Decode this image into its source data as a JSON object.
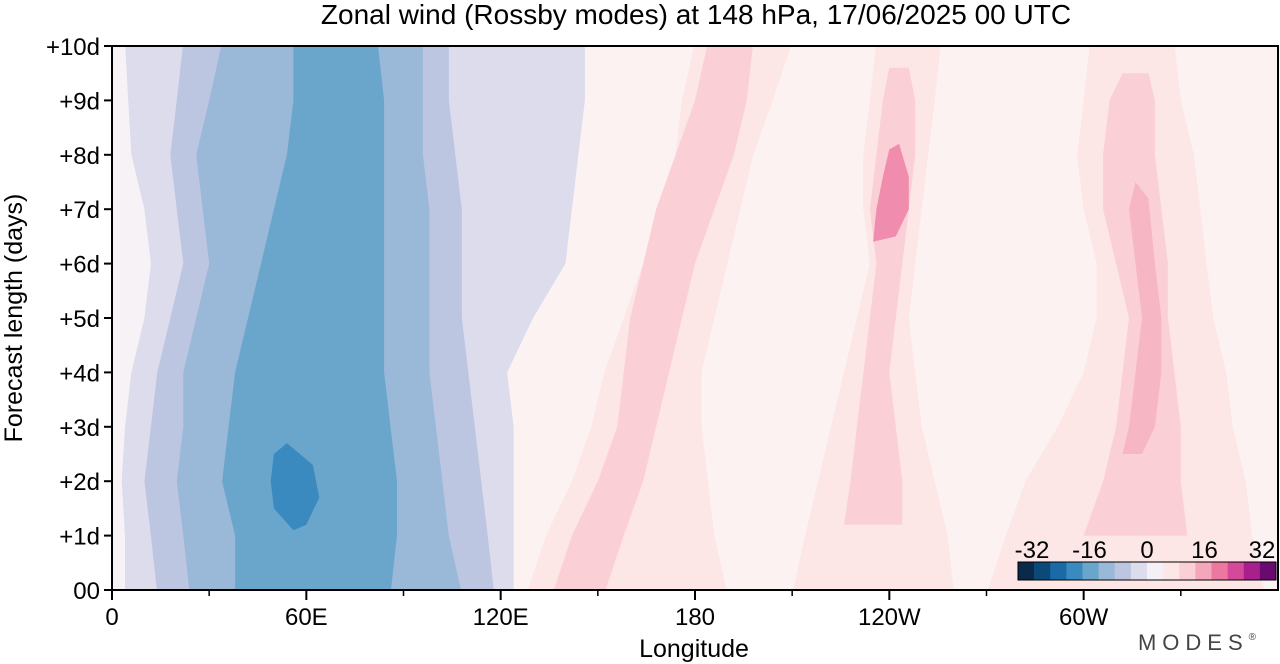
{
  "chart_data": {
    "type": "heatmap",
    "title": "Zonal wind (Rossby modes) at 148 hPa,  17/06/2025  00 UTC",
    "xlabel": "Longitude",
    "ylabel": "Forecast length (days)",
    "x_ticks": [
      {
        "lon": 0,
        "label": "0"
      },
      {
        "lon": 60,
        "label": "60E"
      },
      {
        "lon": 120,
        "label": "120E"
      },
      {
        "lon": 180,
        "label": "180"
      },
      {
        "lon": 240,
        "label": "120W"
      },
      {
        "lon": 300,
        "label": "60W"
      }
    ],
    "x_minor_ticks": [
      30,
      90,
      150,
      210,
      270,
      330
    ],
    "xlim": [
      0,
      360
    ],
    "y_ticks": [
      {
        "day": 0,
        "label": "00"
      },
      {
        "day": 1,
        "label": "+1d"
      },
      {
        "day": 2,
        "label": "+2d"
      },
      {
        "day": 3,
        "label": "+3d"
      },
      {
        "day": 4,
        "label": "+4d"
      },
      {
        "day": 5,
        "label": "+5d"
      },
      {
        "day": 6,
        "label": "+6d"
      },
      {
        "day": 7,
        "label": "+7d"
      },
      {
        "day": 8,
        "label": "+8d"
      },
      {
        "day": 9,
        "label": "+9d"
      },
      {
        "day": 10,
        "label": "+10d"
      }
    ],
    "ylim": [
      0,
      10
    ],
    "colorbar": {
      "labels": [
        "-32",
        "-16",
        "0",
        "16",
        "32"
      ],
      "range": [
        -32,
        32
      ],
      "placement": "bottom-right",
      "colors": [
        "#0a2a4a",
        "#0a4a7a",
        "#1a6aa8",
        "#3a8ac0",
        "#6aa6cc",
        "#9ab8d8",
        "#bcc6e0",
        "#dcdcec",
        "#f4f0f6",
        "#fce6e6",
        "#fad0d6",
        "#f4a6ba",
        "#ec78a0",
        "#d44a98",
        "#a8208c",
        "#6a0a70"
      ]
    },
    "bands": [
      {
        "name": "-10",
        "left": [
          [
            0,
            38
          ],
          [
            1,
            38
          ],
          [
            2,
            34
          ],
          [
            3,
            36
          ],
          [
            4,
            38
          ],
          [
            5,
            42
          ],
          [
            6,
            46
          ],
          [
            7,
            50
          ],
          [
            8,
            54
          ],
          [
            9,
            56
          ],
          [
            10,
            56
          ]
        ],
        "right": [
          [
            0,
            86
          ],
          [
            1,
            88
          ],
          [
            2,
            88
          ],
          [
            3,
            86
          ],
          [
            4,
            84
          ],
          [
            5,
            84
          ],
          [
            6,
            84
          ],
          [
            7,
            84
          ],
          [
            8,
            84
          ],
          [
            9,
            84
          ],
          [
            10,
            82
          ]
        ]
      },
      {
        "name": "-12",
        "left": [
          [
            1.1,
            56
          ],
          [
            1.5,
            50
          ],
          [
            2.0,
            49
          ],
          [
            2.5,
            50
          ],
          [
            2.7,
            54
          ],
          [
            2.3,
            62
          ],
          [
            1.7,
            64
          ],
          [
            1.2,
            60
          ]
        ],
        "right": []
      },
      {
        "name": "-8",
        "left": [
          [
            0,
            24
          ],
          [
            1,
            22
          ],
          [
            2,
            20
          ],
          [
            3,
            22
          ],
          [
            4,
            22
          ],
          [
            5,
            26
          ],
          [
            6,
            30
          ],
          [
            7,
            28
          ],
          [
            8,
            26
          ],
          [
            9,
            30
          ],
          [
            10,
            34
          ]
        ],
        "right": [
          [
            0,
            108
          ],
          [
            1,
            104
          ],
          [
            2,
            102
          ],
          [
            3,
            100
          ],
          [
            4,
            98
          ],
          [
            5,
            98
          ],
          [
            6,
            98
          ],
          [
            7,
            98
          ],
          [
            8,
            96
          ],
          [
            9,
            96
          ],
          [
            10,
            96
          ]
        ]
      },
      {
        "name": "-6",
        "left": [
          [
            0,
            14
          ],
          [
            1,
            12
          ],
          [
            2,
            10
          ],
          [
            3,
            12
          ],
          [
            4,
            14
          ],
          [
            5,
            18
          ],
          [
            6,
            22
          ],
          [
            7,
            20
          ],
          [
            8,
            18
          ],
          [
            9,
            20
          ],
          [
            10,
            22
          ]
        ],
        "right": [
          [
            0,
            118
          ],
          [
            1,
            116
          ],
          [
            2,
            114
          ],
          [
            3,
            112
          ],
          [
            4,
            110
          ],
          [
            5,
            108
          ],
          [
            6,
            108
          ],
          [
            7,
            108
          ],
          [
            8,
            106
          ],
          [
            9,
            104
          ],
          [
            10,
            104
          ]
        ]
      },
      {
        "name": "-4",
        "left": [
          [
            0,
            4
          ],
          [
            1,
            4
          ],
          [
            2,
            3
          ],
          [
            3,
            4
          ],
          [
            4,
            6
          ],
          [
            5,
            10
          ],
          [
            6,
            12
          ],
          [
            7,
            10
          ],
          [
            8,
            6
          ],
          [
            9,
            5
          ],
          [
            10,
            4
          ]
        ],
        "right": [
          [
            0,
            124
          ],
          [
            1,
            124
          ],
          [
            2,
            124
          ],
          [
            3,
            124
          ],
          [
            4,
            122
          ],
          [
            5,
            130
          ],
          [
            6,
            140
          ],
          [
            7,
            142
          ],
          [
            8,
            144
          ],
          [
            9,
            146
          ],
          [
            10,
            146
          ]
        ]
      },
      {
        "name": "+2 A",
        "left": [
          [
            0,
            128
          ],
          [
            1,
            134
          ],
          [
            2,
            142
          ],
          [
            3,
            148
          ],
          [
            4,
            152
          ],
          [
            5,
            158
          ],
          [
            6,
            164
          ],
          [
            7,
            170
          ],
          [
            8,
            174
          ],
          [
            9,
            176
          ],
          [
            10,
            180
          ]
        ],
        "right": [
          [
            0,
            190
          ],
          [
            1,
            186
          ],
          [
            2,
            184
          ],
          [
            3,
            182
          ],
          [
            4,
            182
          ],
          [
            5,
            186
          ],
          [
            6,
            190
          ],
          [
            7,
            194
          ],
          [
            8,
            198
          ],
          [
            9,
            204
          ],
          [
            10,
            210
          ]
        ]
      },
      {
        "name": "+4 A",
        "left": [
          [
            0,
            136
          ],
          [
            1,
            142
          ],
          [
            2,
            150
          ],
          [
            3,
            156
          ],
          [
            4,
            158
          ],
          [
            5,
            160
          ],
          [
            6,
            164
          ],
          [
            7,
            168
          ],
          [
            8,
            174
          ],
          [
            9,
            180
          ],
          [
            10,
            184
          ]
        ],
        "right": [
          [
            0,
            152
          ],
          [
            1,
            158
          ],
          [
            2,
            164
          ],
          [
            3,
            168
          ],
          [
            4,
            172
          ],
          [
            5,
            176
          ],
          [
            6,
            180
          ],
          [
            7,
            186
          ],
          [
            8,
            192
          ],
          [
            9,
            196
          ],
          [
            10,
            198
          ]
        ]
      },
      {
        "name": "+2 B",
        "left": [
          [
            0,
            210
          ],
          [
            1,
            214
          ],
          [
            2,
            218
          ],
          [
            3,
            222
          ],
          [
            4,
            226
          ],
          [
            5,
            230
          ],
          [
            6,
            234
          ],
          [
            7,
            232
          ],
          [
            8,
            232
          ],
          [
            9,
            234
          ],
          [
            10,
            236
          ]
        ],
        "right": [
          [
            0,
            260
          ],
          [
            1,
            258
          ],
          [
            2,
            254
          ],
          [
            3,
            250
          ],
          [
            4,
            248
          ],
          [
            5,
            246
          ],
          [
            6,
            248
          ],
          [
            7,
            250
          ],
          [
            8,
            252
          ],
          [
            9,
            254
          ],
          [
            10,
            256
          ]
        ]
      },
      {
        "name": "+4 B",
        "left": [
          [
            1.2,
            226
          ],
          [
            2,
            228
          ],
          [
            3,
            230
          ],
          [
            4,
            232
          ],
          [
            5,
            234
          ],
          [
            6,
            236
          ],
          [
            7,
            234
          ],
          [
            8,
            236
          ],
          [
            9,
            238
          ],
          [
            9.6,
            240
          ]
        ],
        "right": [
          [
            1.2,
            244
          ],
          [
            2,
            244
          ],
          [
            3,
            242
          ],
          [
            4,
            240
          ],
          [
            5,
            242
          ],
          [
            6,
            244
          ],
          [
            7,
            246
          ],
          [
            8,
            248
          ],
          [
            9,
            248
          ],
          [
            9.6,
            246
          ]
        ]
      },
      {
        "name": "+8 B",
        "left": [
          [
            6.4,
            235
          ],
          [
            7,
            236
          ],
          [
            7.6,
            238
          ],
          [
            8.1,
            240
          ],
          [
            8.2,
            243
          ],
          [
            7.6,
            246
          ],
          [
            7,
            246
          ],
          [
            6.5,
            242
          ]
        ],
        "right": []
      },
      {
        "name": "+2 C",
        "left": [
          [
            0,
            270
          ],
          [
            1,
            276
          ],
          [
            2,
            282
          ],
          [
            3,
            292
          ],
          [
            4,
            300
          ],
          [
            5,
            304
          ],
          [
            6,
            304
          ],
          [
            7,
            300
          ],
          [
            8,
            298
          ],
          [
            9,
            300
          ],
          [
            10,
            302
          ]
        ],
        "right": [
          [
            0,
            356
          ],
          [
            1,
            352
          ],
          [
            2,
            350
          ],
          [
            3,
            346
          ],
          [
            4,
            344
          ],
          [
            5,
            340
          ],
          [
            6,
            338
          ],
          [
            7,
            336
          ],
          [
            8,
            334
          ],
          [
            9,
            330
          ],
          [
            10,
            328
          ]
        ]
      },
      {
        "name": "+4 C",
        "left": [
          [
            1,
            300
          ],
          [
            2,
            306
          ],
          [
            3,
            310
          ],
          [
            4,
            312
          ],
          [
            5,
            314
          ],
          [
            6,
            310
          ],
          [
            7,
            306
          ],
          [
            8,
            306
          ],
          [
            9,
            308
          ],
          [
            9.5,
            312
          ]
        ],
        "right": [
          [
            1,
            332
          ],
          [
            2,
            330
          ],
          [
            3,
            330
          ],
          [
            4,
            328
          ],
          [
            5,
            326
          ],
          [
            6,
            326
          ],
          [
            7,
            324
          ],
          [
            8,
            322
          ],
          [
            9,
            322
          ],
          [
            9.5,
            320
          ]
        ]
      },
      {
        "name": "+6 C",
        "left": [
          [
            2.5,
            312
          ],
          [
            3,
            314
          ],
          [
            4,
            316
          ],
          [
            5,
            318
          ],
          [
            6,
            316
          ],
          [
            7,
            314
          ],
          [
            7.5,
            316
          ],
          [
            7.2,
            320
          ],
          [
            6,
            322
          ],
          [
            5,
            324
          ],
          [
            4,
            324
          ],
          [
            3,
            322
          ],
          [
            2.5,
            318
          ]
        ],
        "right": []
      }
    ]
  },
  "brand": "MODES",
  "brand_mark": "®"
}
